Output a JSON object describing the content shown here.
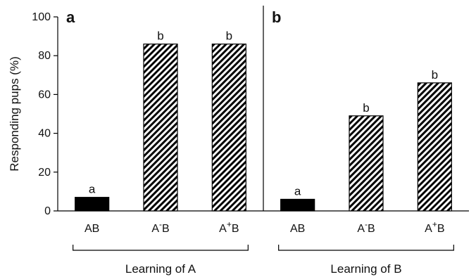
{
  "chart_data": {
    "type": "bar",
    "ylabel": "Responding pups (%)",
    "ylim": [
      0,
      100
    ],
    "yticks": [
      0,
      20,
      40,
      60,
      80,
      100
    ],
    "grid": false,
    "legend": "none",
    "colors": {
      "solid": "#000000",
      "hatch_fg": "#000000",
      "hatch_bg": "#ffffff"
    },
    "panels": [
      {
        "letter": "a",
        "group_label": "Learning of A",
        "bars": [
          {
            "category": "AB",
            "label_main": "AB",
            "superscript": "",
            "suffix": "",
            "value": 7,
            "significance": "a",
            "fill": "solid"
          },
          {
            "category": "A-B",
            "label_main": "A",
            "superscript": "-",
            "suffix": "B",
            "value": 86,
            "significance": "b",
            "fill": "hatch"
          },
          {
            "category": "A+B",
            "label_main": "A",
            "superscript": "+",
            "suffix": "B",
            "value": 86,
            "significance": "b",
            "fill": "hatch"
          }
        ]
      },
      {
        "letter": "b",
        "group_label": "Learning of B",
        "bars": [
          {
            "category": "AB",
            "label_main": "AB",
            "superscript": "",
            "suffix": "",
            "value": 6,
            "significance": "a",
            "fill": "solid"
          },
          {
            "category": "A-B",
            "label_main": "A",
            "superscript": "-",
            "suffix": "B",
            "value": 49,
            "significance": "b",
            "fill": "hatch"
          },
          {
            "category": "A+B",
            "label_main": "A",
            "superscript": "+",
            "suffix": "B",
            "value": 66,
            "significance": "b",
            "fill": "hatch"
          }
        ]
      }
    ]
  }
}
